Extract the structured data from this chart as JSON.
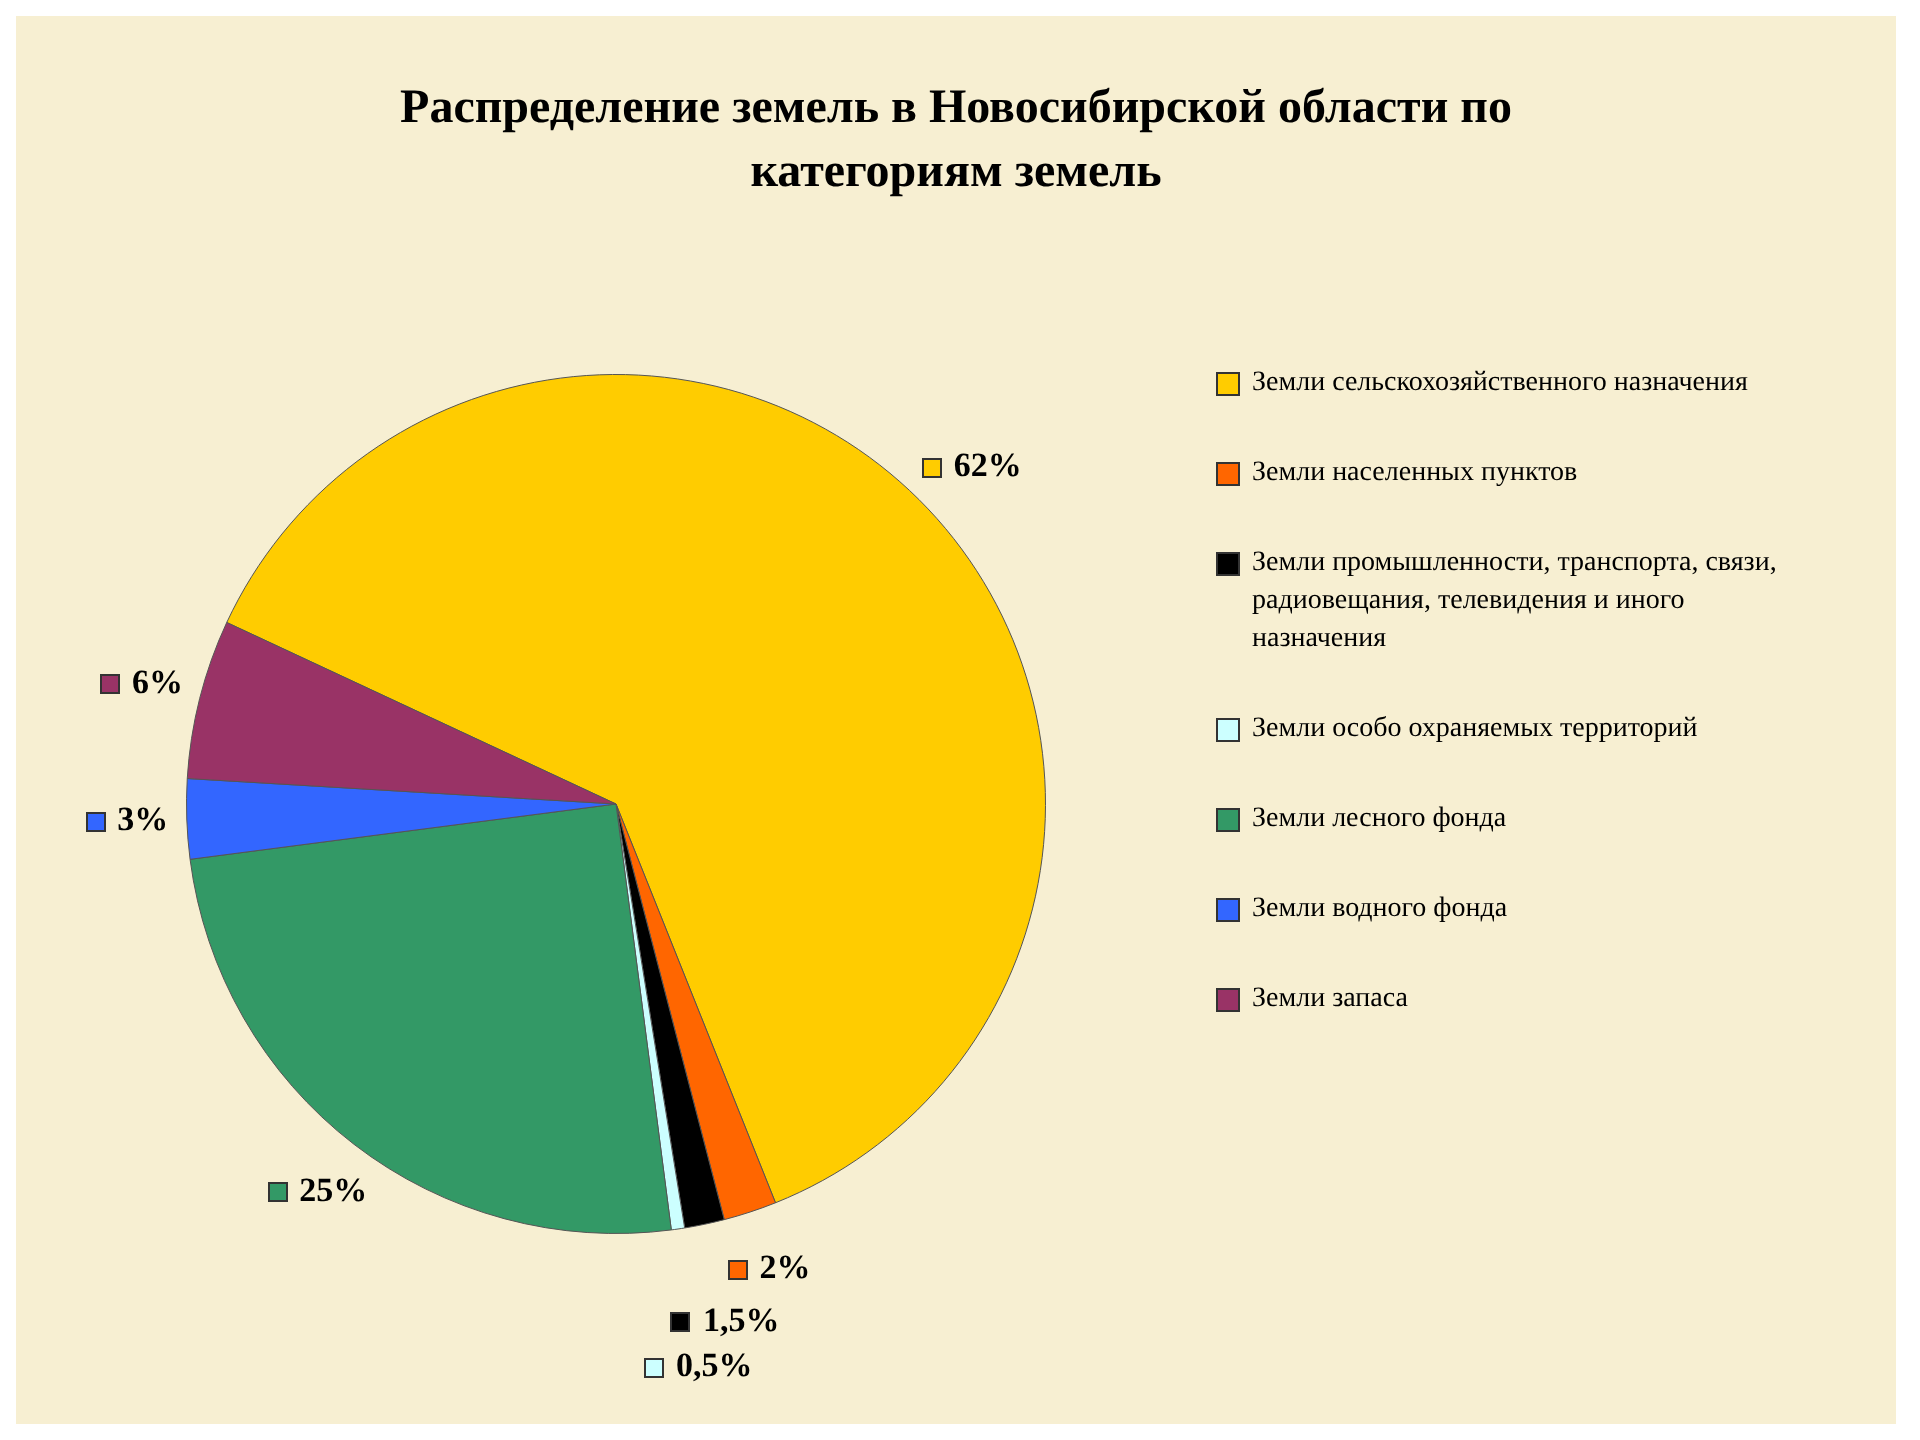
{
  "chart_data": {
    "type": "pie",
    "title": "Распределение земель в Новосибирской области по категориям земель",
    "categories": [
      "Земли сельскохозяйственного назначения",
      "Земли населенных пунктов",
      "Земли промышленности, транспорта, связи, радиовещания, телевидения и иного назначения",
      "Земли особо охраняемых территорий",
      "Земли лесного фонда",
      "Земли водного фонда",
      "Земли запаса"
    ],
    "values": [
      62,
      2,
      1.5,
      0.5,
      25,
      3,
      6
    ],
    "colors": [
      "#ffcc00",
      "#ff6600",
      "#000000",
      "#ccffff",
      "#339966",
      "#3366ff",
      "#993366"
    ],
    "value_labels": [
      "62%",
      "2%",
      "1,5%",
      "0,5%",
      "25%",
      "3%",
      "6%"
    ],
    "legend": "right"
  }
}
